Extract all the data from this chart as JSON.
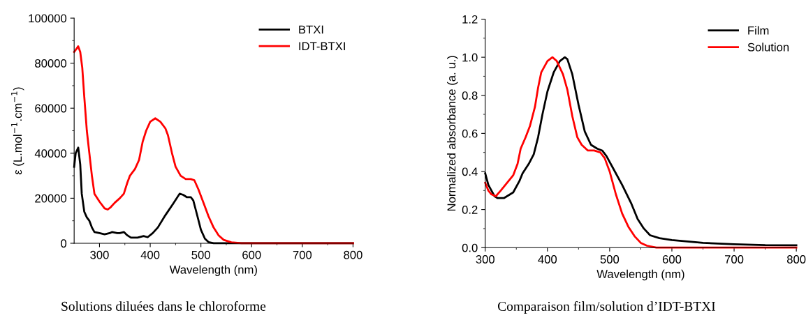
{
  "chart_data": [
    {
      "type": "line",
      "xlabel": "Wavelength (nm)",
      "ylabel": "ε (L.mol$^{−1}$.cm$^{−1}$)",
      "xlim": [
        250,
        800
      ],
      "xticks": [
        300,
        400,
        500,
        600,
        700,
        800
      ],
      "ylim": [
        0,
        100000
      ],
      "yticks": [
        0,
        20000,
        40000,
        60000,
        80000,
        100000
      ],
      "legend": "top right",
      "grid": false,
      "annotations": [
        "Solutions diluées dans le chloroforme"
      ],
      "series": [
        {
          "name": "BTXI",
          "color": "#000000",
          "x": [
            250,
            253,
            258,
            262,
            265,
            270,
            275,
            280,
            285,
            290,
            300,
            310,
            320,
            325,
            335,
            340,
            348,
            355,
            362,
            375,
            387,
            395,
            405,
            415,
            430,
            445,
            458,
            465,
            472,
            480,
            485,
            492,
            500,
            508,
            515,
            525,
            600,
            800
          ],
          "values": [
            34000,
            40000,
            42500,
            35000,
            22000,
            14000,
            11500,
            10000,
            7000,
            5000,
            4500,
            4000,
            4500,
            5000,
            4500,
            4500,
            5000,
            3500,
            2500,
            2500,
            3200,
            2700,
            4500,
            7000,
            12500,
            17500,
            22000,
            21500,
            20500,
            20500,
            19000,
            13000,
            6000,
            2000,
            500,
            0,
            0,
            0
          ]
        },
        {
          "name": "IDT-BTXI",
          "color": "#ff0000",
          "x": [
            250,
            255,
            258,
            262,
            266,
            270,
            275,
            280,
            285,
            290,
            300,
            310,
            316,
            322,
            330,
            340,
            348,
            355,
            360,
            370,
            378,
            385,
            392,
            400,
            410,
            420,
            430,
            435,
            443,
            450,
            460,
            470,
            480,
            487,
            495,
            505,
            515,
            525,
            535,
            545,
            560,
            580,
            800
          ],
          "values": [
            85000,
            86500,
            87500,
            85000,
            78000,
            65000,
            50000,
            40000,
            30000,
            22000,
            18500,
            15500,
            15000,
            16000,
            18000,
            20000,
            22000,
            27000,
            30000,
            33000,
            37000,
            45000,
            50000,
            54000,
            55500,
            54000,
            51000,
            48000,
            40000,
            34000,
            30000,
            28500,
            28500,
            28000,
            24000,
            18000,
            12000,
            7000,
            3500,
            1500,
            400,
            0,
            0
          ]
        }
      ]
    },
    {
      "type": "line",
      "xlabel": "Wavelength (nm)",
      "ylabel": "Normalized absorbance (a. u.)",
      "xlim": [
        300,
        800
      ],
      "xticks": [
        300,
        400,
        500,
        600,
        700,
        800
      ],
      "ylim": [
        0,
        1.2
      ],
      "yticks": [
        {
          "value": 0,
          "label": "0.0"
        },
        0.2,
        0.4,
        0.6,
        0.8,
        {
          "value": 1,
          "label": "1.0"
        },
        1.2
      ],
      "legend": "top right",
      "grid": false,
      "annotations": [
        "Comparaison film/solution d’IDT-BTXI"
      ],
      "series": [
        {
          "name": "Film",
          "color": "#000000",
          "x": [
            300,
            305,
            310,
            315,
            320,
            330,
            340,
            345,
            355,
            360,
            370,
            378,
            385,
            392,
            400,
            410,
            420,
            428,
            432,
            440,
            450,
            460,
            470,
            480,
            488,
            495,
            505,
            520,
            535,
            545,
            555,
            565,
            580,
            600,
            650,
            700,
            750,
            800
          ],
          "values": [
            0.39,
            0.33,
            0.3,
            0.27,
            0.26,
            0.26,
            0.28,
            0.29,
            0.35,
            0.39,
            0.44,
            0.49,
            0.58,
            0.7,
            0.82,
            0.92,
            0.98,
            1.0,
            0.99,
            0.91,
            0.75,
            0.61,
            0.54,
            0.52,
            0.51,
            0.48,
            0.42,
            0.33,
            0.23,
            0.15,
            0.1,
            0.065,
            0.05,
            0.04,
            0.025,
            0.018,
            0.013,
            0.012
          ]
        },
        {
          "name": "Solution",
          "color": "#ff0000",
          "x": [
            300,
            305,
            310,
            317,
            325,
            335,
            345,
            352,
            357,
            365,
            372,
            380,
            385,
            390,
            400,
            408,
            415,
            425,
            432,
            440,
            448,
            455,
            465,
            475,
            485,
            492,
            500,
            510,
            520,
            530,
            540,
            550,
            560,
            575,
            800
          ],
          "values": [
            0.34,
            0.3,
            0.28,
            0.27,
            0.3,
            0.34,
            0.38,
            0.44,
            0.52,
            0.58,
            0.64,
            0.74,
            0.84,
            0.92,
            0.98,
            1.0,
            0.98,
            0.91,
            0.83,
            0.69,
            0.58,
            0.54,
            0.51,
            0.51,
            0.5,
            0.47,
            0.4,
            0.28,
            0.18,
            0.11,
            0.06,
            0.025,
            0.01,
            0.0,
            0.0
          ]
        }
      ]
    }
  ]
}
